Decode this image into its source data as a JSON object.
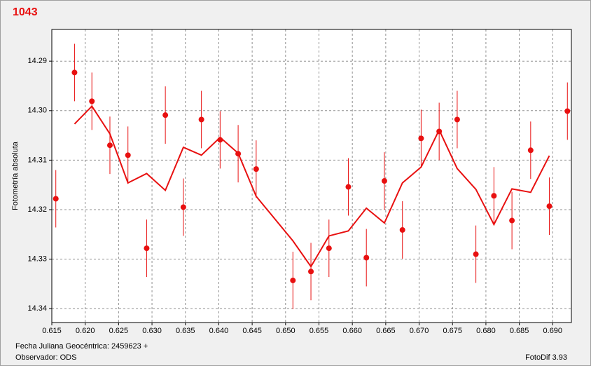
{
  "chart_data": {
    "type": "scatter",
    "title": "1043",
    "y_label": "Fotometría absoluta",
    "footer_left": [
      "Fecha Juliana Geocéntrica: 2459623 +",
      "Observador: ODS"
    ],
    "footer_right": "FotoDif 3.93",
    "xlim": [
      0.615,
      0.6928
    ],
    "ylim": [
      14.3428,
      14.2836
    ],
    "xticks": [
      {
        "value": 0.615,
        "label": "0.615"
      },
      {
        "value": 0.62,
        "label": "0.620"
      },
      {
        "value": 0.625,
        "label": "0.625"
      },
      {
        "value": 0.63,
        "label": "0.630"
      },
      {
        "value": 0.635,
        "label": "0.635"
      },
      {
        "value": 0.64,
        "label": "0.640"
      },
      {
        "value": 0.645,
        "label": "0.645"
      },
      {
        "value": 0.65,
        "label": "0.650"
      },
      {
        "value": 0.655,
        "label": "0.655"
      },
      {
        "value": 0.66,
        "label": "0.660"
      },
      {
        "value": 0.665,
        "label": "0.665"
      },
      {
        "value": 0.67,
        "label": "0.670"
      },
      {
        "value": 0.675,
        "label": "0.675"
      },
      {
        "value": 0.68,
        "label": "0.680"
      },
      {
        "value": 0.685,
        "label": "0.685"
      },
      {
        "value": 0.69,
        "label": "0.690"
      }
    ],
    "yticks": [
      14.29,
      {
        "value": 14.3,
        "label": "14.30"
      },
      14.31,
      14.32,
      14.33,
      14.34
    ],
    "grid": true,
    "series": [
      {
        "type": "errorbar",
        "color": "#e81010",
        "x": [
          0.6156,
          0.6184,
          0.621,
          0.6237,
          0.6264,
          0.6292,
          0.632,
          0.6347,
          0.6374,
          0.6402,
          0.6429,
          0.6456,
          0.6511,
          0.6538,
          0.6565,
          0.6594,
          0.6621,
          0.6648,
          0.6675,
          0.6703,
          0.673,
          0.6757,
          0.6785,
          0.6812,
          0.6839,
          0.6867,
          0.6895,
          0.6922
        ],
        "values": [
          14.3178,
          14.2923,
          14.2981,
          14.307,
          14.309,
          14.3278,
          14.3009,
          14.3195,
          14.3018,
          14.3059,
          14.3087,
          14.3118,
          14.3343,
          14.3325,
          14.3278,
          14.3154,
          14.3297,
          14.3142,
          14.3241,
          14.3056,
          14.3042,
          14.3018,
          14.329,
          14.3172,
          14.3222,
          14.308,
          14.3193,
          14.3001
        ],
        "errors": [
          0.0058,
          0.0058,
          0.0058,
          0.0058,
          0.0058,
          0.0058,
          0.0058,
          0.0058,
          0.0058,
          0.0058,
          0.0058,
          0.0058,
          0.0058,
          0.0058,
          0.0058,
          0.0058,
          0.0058,
          0.0058,
          0.0058,
          0.0058,
          0.0058,
          0.0058,
          0.0058,
          0.0058,
          0.0058,
          0.0058,
          0.0058,
          0.0058
        ]
      },
      {
        "type": "line",
        "color": "#e81010",
        "x": [
          0.6184,
          0.621,
          0.6237,
          0.6264,
          0.6292,
          0.632,
          0.6347,
          0.6374,
          0.6402,
          0.6429,
          0.6456,
          0.6511,
          0.6538,
          0.6565,
          0.6594,
          0.6621,
          0.6648,
          0.6675,
          0.6703,
          0.673,
          0.6757,
          0.6785,
          0.6812,
          0.6839,
          0.6867,
          0.6895
        ],
        "values": [
          14.3027,
          14.2991,
          14.3047,
          14.3146,
          14.3127,
          14.3161,
          14.3074,
          14.309,
          14.3054,
          14.3086,
          14.3173,
          14.3263,
          14.3315,
          14.3253,
          14.3243,
          14.3197,
          14.3227,
          14.3146,
          14.3114,
          14.3039,
          14.3117,
          14.3159,
          14.323,
          14.3158,
          14.3165,
          14.3091
        ]
      }
    ]
  }
}
